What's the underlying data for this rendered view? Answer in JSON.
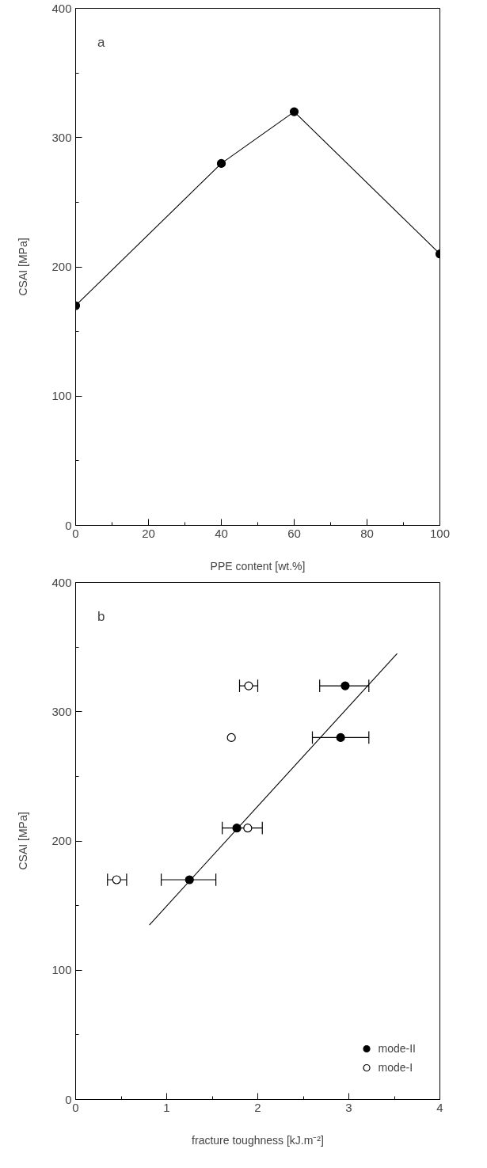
{
  "chart_data": [
    {
      "type": "line",
      "xlabel": "PPE content [wt.%]",
      "ylabel": "CSAI [MPa]",
      "annotations": [
        "a"
      ],
      "marker": "circle",
      "line_style": "solid",
      "grid": false,
      "legend": false,
      "xlim": [
        0,
        100
      ],
      "ylim": [
        0,
        400
      ],
      "xticks": [
        0,
        20,
        40,
        60,
        80,
        100
      ],
      "yticks": [
        0,
        100,
        200,
        300,
        400
      ],
      "series": [
        {
          "color": "#000000",
          "x": [
            0,
            40,
            60,
            100
          ],
          "values": [
            170,
            280,
            320,
            210
          ]
        }
      ]
    },
    {
      "type": "scatter",
      "xlabel": "fracture toughness [kJ.m⁻²]",
      "ylabel": "CSAI [MPa]",
      "annotations": [
        "b"
      ],
      "marker": "circle",
      "grid": false,
      "legend": "bottom right",
      "xlim": [
        0,
        4
      ],
      "ylim": [
        0,
        400
      ],
      "xticks": [
        0,
        1,
        2,
        3,
        4
      ],
      "yticks": [
        0,
        100,
        200,
        300,
        400
      ],
      "series": [
        {
          "name": "mode-II",
          "color": "#000000",
          "x": [
            2.96,
            2.91,
            1.77,
            1.25
          ],
          "values": [
            320,
            280,
            210,
            170
          ],
          "xerrors": [
            [
              2.68,
              3.22
            ],
            [
              2.6,
              3.22
            ],
            [
              1.61,
              2.05
            ],
            [
              0.94,
              1.54
            ]
          ]
        },
        {
          "name": "mode-I",
          "color": "#000000",
          "marker": "circle_open",
          "x": [
            1.9,
            1.71,
            1.89,
            0.45
          ],
          "values": [
            320,
            280,
            210,
            170
          ],
          "xerrors": [
            [
              1.8,
              2.0
            ],
            null,
            null,
            [
              0.35,
              0.56
            ]
          ]
        },
        {
          "type": "line",
          "color": "#000000",
          "marker": "none",
          "x": [
            0.81,
            3.53
          ],
          "values": [
            135,
            345
          ]
        }
      ]
    }
  ]
}
